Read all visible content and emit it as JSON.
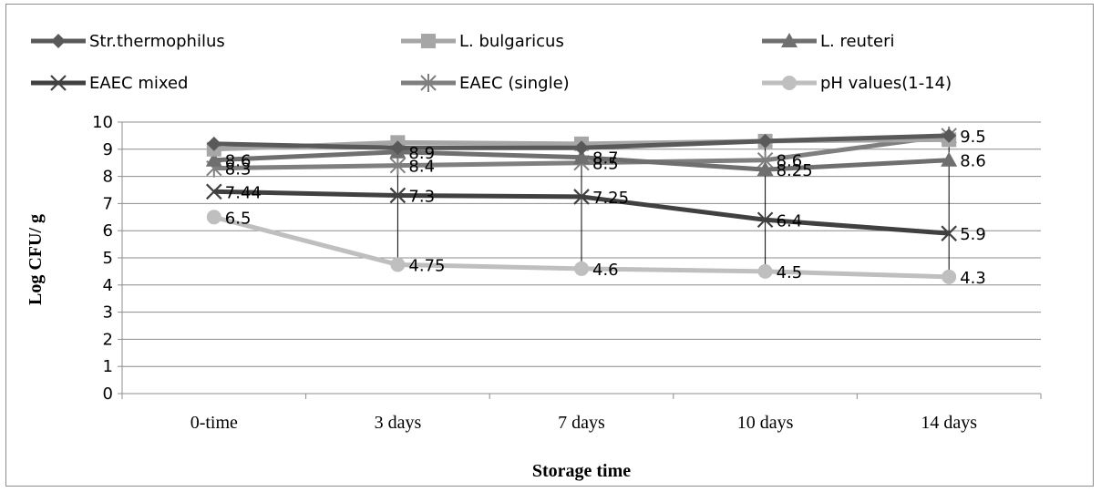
{
  "chart_data": {
    "type": "line",
    "categories": [
      "0-time",
      "3 days",
      "7 days",
      "10 days",
      "14 days"
    ],
    "ylabel": "Log CFU/ g",
    "xlabel": "Storage time",
    "ylim": [
      0,
      10
    ],
    "yticks": [
      0,
      1,
      2,
      3,
      4,
      5,
      6,
      7,
      8,
      9,
      10
    ],
    "grid": "horizontal",
    "legend": "top",
    "drop_lines": true,
    "series": [
      {
        "name": "Str.thermophilus",
        "values": [
          9.2,
          9.05,
          9.05,
          9.3,
          9.5
        ],
        "color": "#595959",
        "marker": "diamond",
        "labels": [
          "",
          "",
          "",
          "",
          ""
        ]
      },
      {
        "name": "L. bulgaricus",
        "values": [
          9.0,
          9.25,
          9.2,
          9.3,
          9.35
        ],
        "color": "#a6a6a6",
        "marker": "square",
        "labels": [
          "",
          "",
          "",
          "",
          ""
        ]
      },
      {
        "name": "L. reuteri",
        "values": [
          8.6,
          8.9,
          8.7,
          8.25,
          8.6
        ],
        "color": "#6f6f6f",
        "marker": "triangle",
        "labels": [
          "8.6",
          "8.9",
          "8.7",
          "8.25",
          "8.6"
        ]
      },
      {
        "name": "EAEC mixed",
        "values": [
          7.44,
          7.3,
          7.25,
          6.4,
          5.9
        ],
        "color": "#404040",
        "marker": "x",
        "labels": [
          "7.44",
          "7.3",
          "7.25",
          "6.4",
          "5.9"
        ]
      },
      {
        "name": "EAEC (single)",
        "values": [
          8.3,
          8.4,
          8.5,
          8.6,
          9.5
        ],
        "color": "#7f7f7f",
        "marker": "star",
        "labels": [
          "8.3",
          "8.4",
          "8.5",
          "8.6",
          "9.5"
        ]
      },
      {
        "name": "pH values(1-14)",
        "values": [
          6.5,
          4.75,
          4.6,
          4.5,
          4.3
        ],
        "color": "#bfbfbf",
        "marker": "circle",
        "labels": [
          "6.5",
          "4.75",
          "4.6",
          "4.5",
          "4.3"
        ]
      }
    ]
  }
}
